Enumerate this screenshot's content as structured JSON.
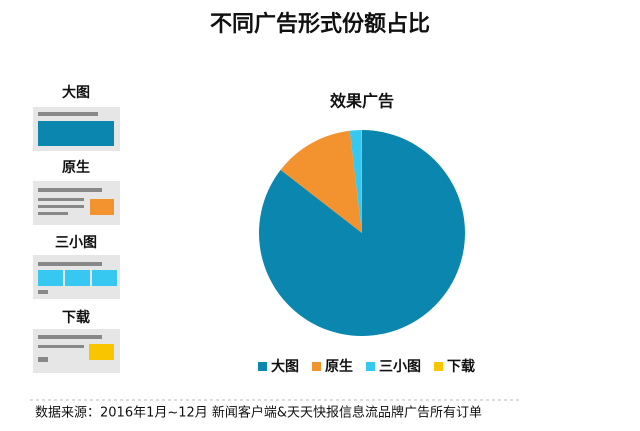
{
  "chart_data": {
    "type": "pie",
    "title": "不同广告形式份额占比",
    "subtitle": "效果广告",
    "source": "数据来源：2016年1月~12月 新闻客户端&天天快报信息流品牌广告所有订单",
    "categories": [
      "大图",
      "原生",
      "三小图",
      "下载"
    ],
    "values": [
      85.5,
      12.6,
      1.8,
      0.1
    ],
    "colors": [
      "#0b86ae",
      "#f29330",
      "#37c8f2",
      "#f9c400"
    ],
    "legend": "bottom"
  }
}
